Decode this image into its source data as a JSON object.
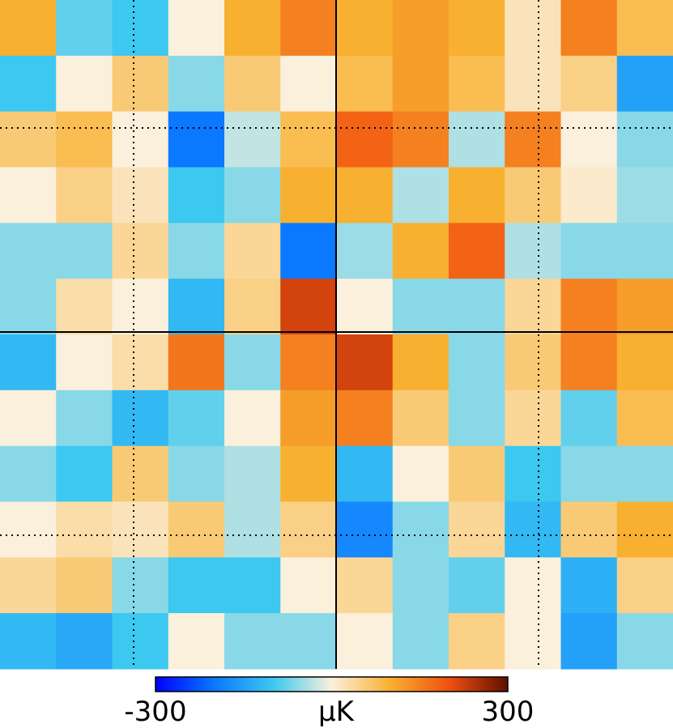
{
  "chart_data": {
    "type": "heatmap",
    "colorbar_label": "µK",
    "zlim": [
      -300,
      300
    ],
    "zticks": [
      -300,
      300
    ],
    "colors": [
      "#0000ff",
      "#0a78ff",
      "#3cc8f0",
      "#fbf0dc",
      "#f8b030",
      "#f05010",
      "#601000"
    ],
    "z": [
      [
        100,
        -80,
        -100,
        0,
        100,
        150,
        100,
        120,
        100,
        20,
        150,
        80
      ],
      [
        -100,
        0,
        60,
        -60,
        60,
        0,
        80,
        120,
        80,
        20,
        50,
        -150
      ],
      [
        60,
        80,
        0,
        -200,
        -30,
        80,
        180,
        150,
        -40,
        150,
        0,
        -60
      ],
      [
        0,
        50,
        20,
        -100,
        -60,
        100,
        100,
        -40,
        100,
        60,
        10,
        -50
      ],
      [
        -60,
        -60,
        40,
        -60,
        40,
        -200,
        -50,
        100,
        180,
        -40,
        -60,
        -60
      ],
      [
        -60,
        30,
        0,
        -120,
        50,
        220,
        0,
        -60,
        -60,
        40,
        150,
        120
      ],
      [
        -120,
        0,
        30,
        160,
        -60,
        150,
        220,
        100,
        -60,
        60,
        150,
        100
      ],
      [
        0,
        -60,
        -120,
        -80,
        0,
        120,
        150,
        60,
        -60,
        40,
        -80,
        80
      ],
      [
        -60,
        -100,
        60,
        -60,
        -40,
        100,
        -120,
        0,
        60,
        -100,
        -60,
        -60
      ],
      [
        0,
        30,
        20,
        60,
        -40,
        50,
        -180,
        -60,
        40,
        -120,
        60,
        100
      ],
      [
        40,
        60,
        -60,
        -100,
        -100,
        0,
        40,
        -60,
        -80,
        0,
        -130,
        50
      ],
      [
        -120,
        -140,
        -100,
        0,
        -60,
        -60,
        0,
        -60,
        50,
        0,
        -150,
        -60
      ]
    ]
  }
}
